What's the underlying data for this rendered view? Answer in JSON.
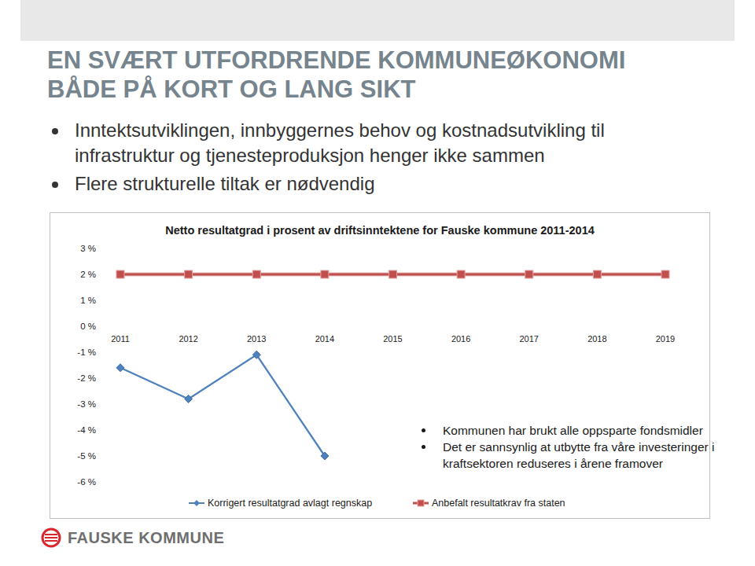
{
  "slide": {
    "title_lines": [
      "EN SVÆRT UTFORDRENDE KOMMUNEØKONOMI",
      "BÅDE PÅ KORT OG LANG SIKT"
    ],
    "bullets": [
      "Inntektsutviklingen, innbyggernes behov og kostnadsutvikling til infrastruktur og tjenesteproduksjon henger ikke sammen",
      "Flere strukturelle tiltak er nødvendig"
    ],
    "logo_text": "FAUSKE KOMMUNE"
  },
  "chart_data": {
    "type": "line",
    "title": "Netto resultatgrad i prosent av driftsinntektene for Fauske kommune 2011-2014",
    "categories": [
      "2011",
      "2012",
      "2013",
      "2014",
      "2015",
      "2016",
      "2017",
      "2018",
      "2019"
    ],
    "series": [
      {
        "name": "Korrigert resultatgrad avlagt regnskap",
        "color": "#4f81bd",
        "marker": "diamond",
        "values": [
          -1.6,
          -2.8,
          -1.1,
          -5.0,
          null,
          null,
          null,
          null,
          null
        ]
      },
      {
        "name": "Anbefalt resultatkrav fra staten",
        "color": "#c0504d",
        "marker": "square",
        "values": [
          2,
          2,
          2,
          2,
          2,
          2,
          2,
          2,
          2
        ]
      }
    ],
    "ylim": [
      -6,
      3
    ],
    "yticks": [
      {
        "value": -6,
        "label": "-6 %"
      },
      {
        "value": -5,
        "label": "-5 %"
      },
      {
        "value": -4,
        "label": "-4 %"
      },
      {
        "value": -3,
        "label": "-3 %"
      },
      {
        "value": -2,
        "label": "-2 %"
      },
      {
        "value": -1,
        "label": "-1 %"
      },
      {
        "value": 0,
        "label": "0 %"
      },
      {
        "value": 1,
        "label": "1 %"
      },
      {
        "value": 2,
        "label": "2 %"
      },
      {
        "value": 3,
        "label": "3 %"
      }
    ],
    "grid": false,
    "legend": "bottom",
    "annotations": [
      "Kommunen har brukt alle oppsparte fondsmidler",
      "Det er sannsynlig at utbytte fra våre investeringer i kraftsektoren reduseres i årene framover"
    ]
  }
}
